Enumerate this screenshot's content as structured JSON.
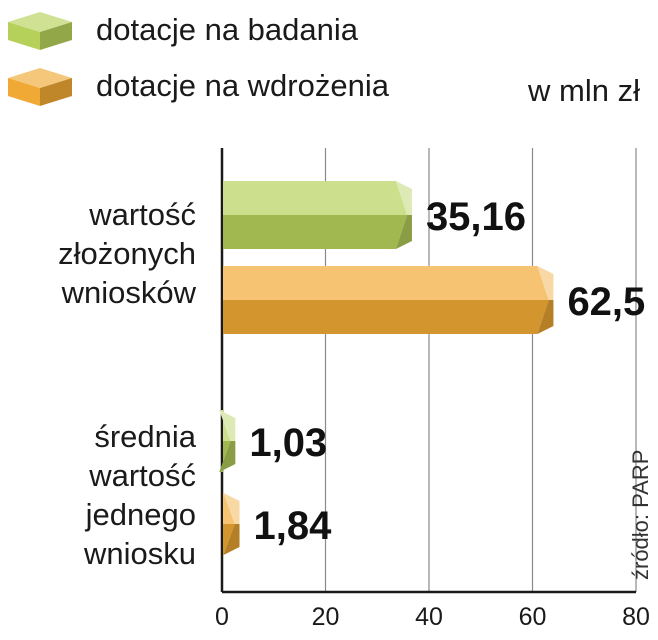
{
  "chart_data": {
    "type": "bar",
    "orientation": "horizontal",
    "unit": "w mln zł",
    "categories": [
      [
        "wartość",
        "złożonych",
        "wniosków"
      ],
      [
        "średnia",
        "wartość",
        "jednego",
        "wniosku"
      ]
    ],
    "series": [
      {
        "name": "dotacje na badania",
        "color": "#b6d15a",
        "values": [
          35.16,
          1.03
        ],
        "labels": [
          "35,16",
          "1,03"
        ]
      },
      {
        "name": "dotacje na wdrożenia",
        "color": "#f0a934",
        "values": [
          62.5,
          1.84
        ],
        "labels": [
          "62,5",
          "1,84"
        ]
      }
    ],
    "xlim": [
      0,
      80
    ],
    "x_ticks": [
      0,
      20,
      40,
      60,
      80
    ],
    "x_tick_labels": [
      "0",
      "20",
      "40",
      "60",
      "80"
    ],
    "grid": true,
    "legend_position": "top-left",
    "source": "źródło: PARP"
  }
}
